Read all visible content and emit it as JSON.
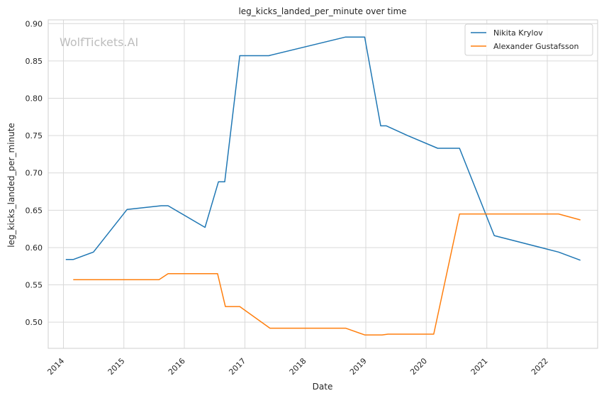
{
  "chart_data": {
    "type": "line",
    "title": "leg_kicks_landed_per_minute over time",
    "xlabel": "Date",
    "ylabel": "leg_kicks_landed_per_minute",
    "xlim": [
      "2013-10-01",
      "2022-11-01"
    ],
    "ylim": [
      0.465,
      0.905
    ],
    "x_ticks": [
      "2014",
      "2015",
      "2016",
      "2017",
      "2018",
      "2019",
      "2020",
      "2021",
      "2022"
    ],
    "y_ticks": [
      0.5,
      0.55,
      0.6,
      0.65,
      0.7,
      0.75,
      0.8,
      0.85,
      0.9
    ],
    "grid": true,
    "legend_position": "top-right",
    "watermark": "WolfTickets.AI",
    "series": [
      {
        "name": "Nikita Krylov",
        "color": "#1f77b4",
        "points": [
          [
            "2014-01-15",
            0.584
          ],
          [
            "2014-03-01",
            0.584
          ],
          [
            "2014-07-01",
            0.594
          ],
          [
            "2015-01-20",
            0.651
          ],
          [
            "2015-08-15",
            0.656
          ],
          [
            "2015-09-25",
            0.656
          ],
          [
            "2016-05-05",
            0.627
          ],
          [
            "2016-07-25",
            0.688
          ],
          [
            "2016-09-01",
            0.688
          ],
          [
            "2016-12-01",
            0.857
          ],
          [
            "2017-05-25",
            0.857
          ],
          [
            "2018-09-01",
            0.882
          ],
          [
            "2018-12-25",
            0.882
          ],
          [
            "2019-04-01",
            0.763
          ],
          [
            "2019-05-05",
            0.763
          ],
          [
            "2019-09-10",
            0.75
          ],
          [
            "2020-03-10",
            0.733
          ],
          [
            "2020-07-20",
            0.733
          ],
          [
            "2021-02-15",
            0.616
          ],
          [
            "2022-03-10",
            0.594
          ],
          [
            "2022-07-20",
            0.583
          ]
        ]
      },
      {
        "name": "Alexander Gustafsson",
        "color": "#ff7f0e",
        "points": [
          [
            "2014-03-01",
            0.557
          ],
          [
            "2015-08-01",
            0.557
          ],
          [
            "2015-09-25",
            0.565
          ],
          [
            "2016-07-20",
            0.565
          ],
          [
            "2016-09-05",
            0.521
          ],
          [
            "2016-12-01",
            0.521
          ],
          [
            "2017-06-01",
            0.492
          ],
          [
            "2018-09-01",
            0.492
          ],
          [
            "2018-12-25",
            0.483
          ],
          [
            "2019-04-10",
            0.483
          ],
          [
            "2019-05-15",
            0.484
          ],
          [
            "2020-02-15",
            0.484
          ],
          [
            "2020-07-20",
            0.645
          ],
          [
            "2022-03-10",
            0.645
          ],
          [
            "2022-07-20",
            0.637
          ]
        ]
      }
    ]
  }
}
